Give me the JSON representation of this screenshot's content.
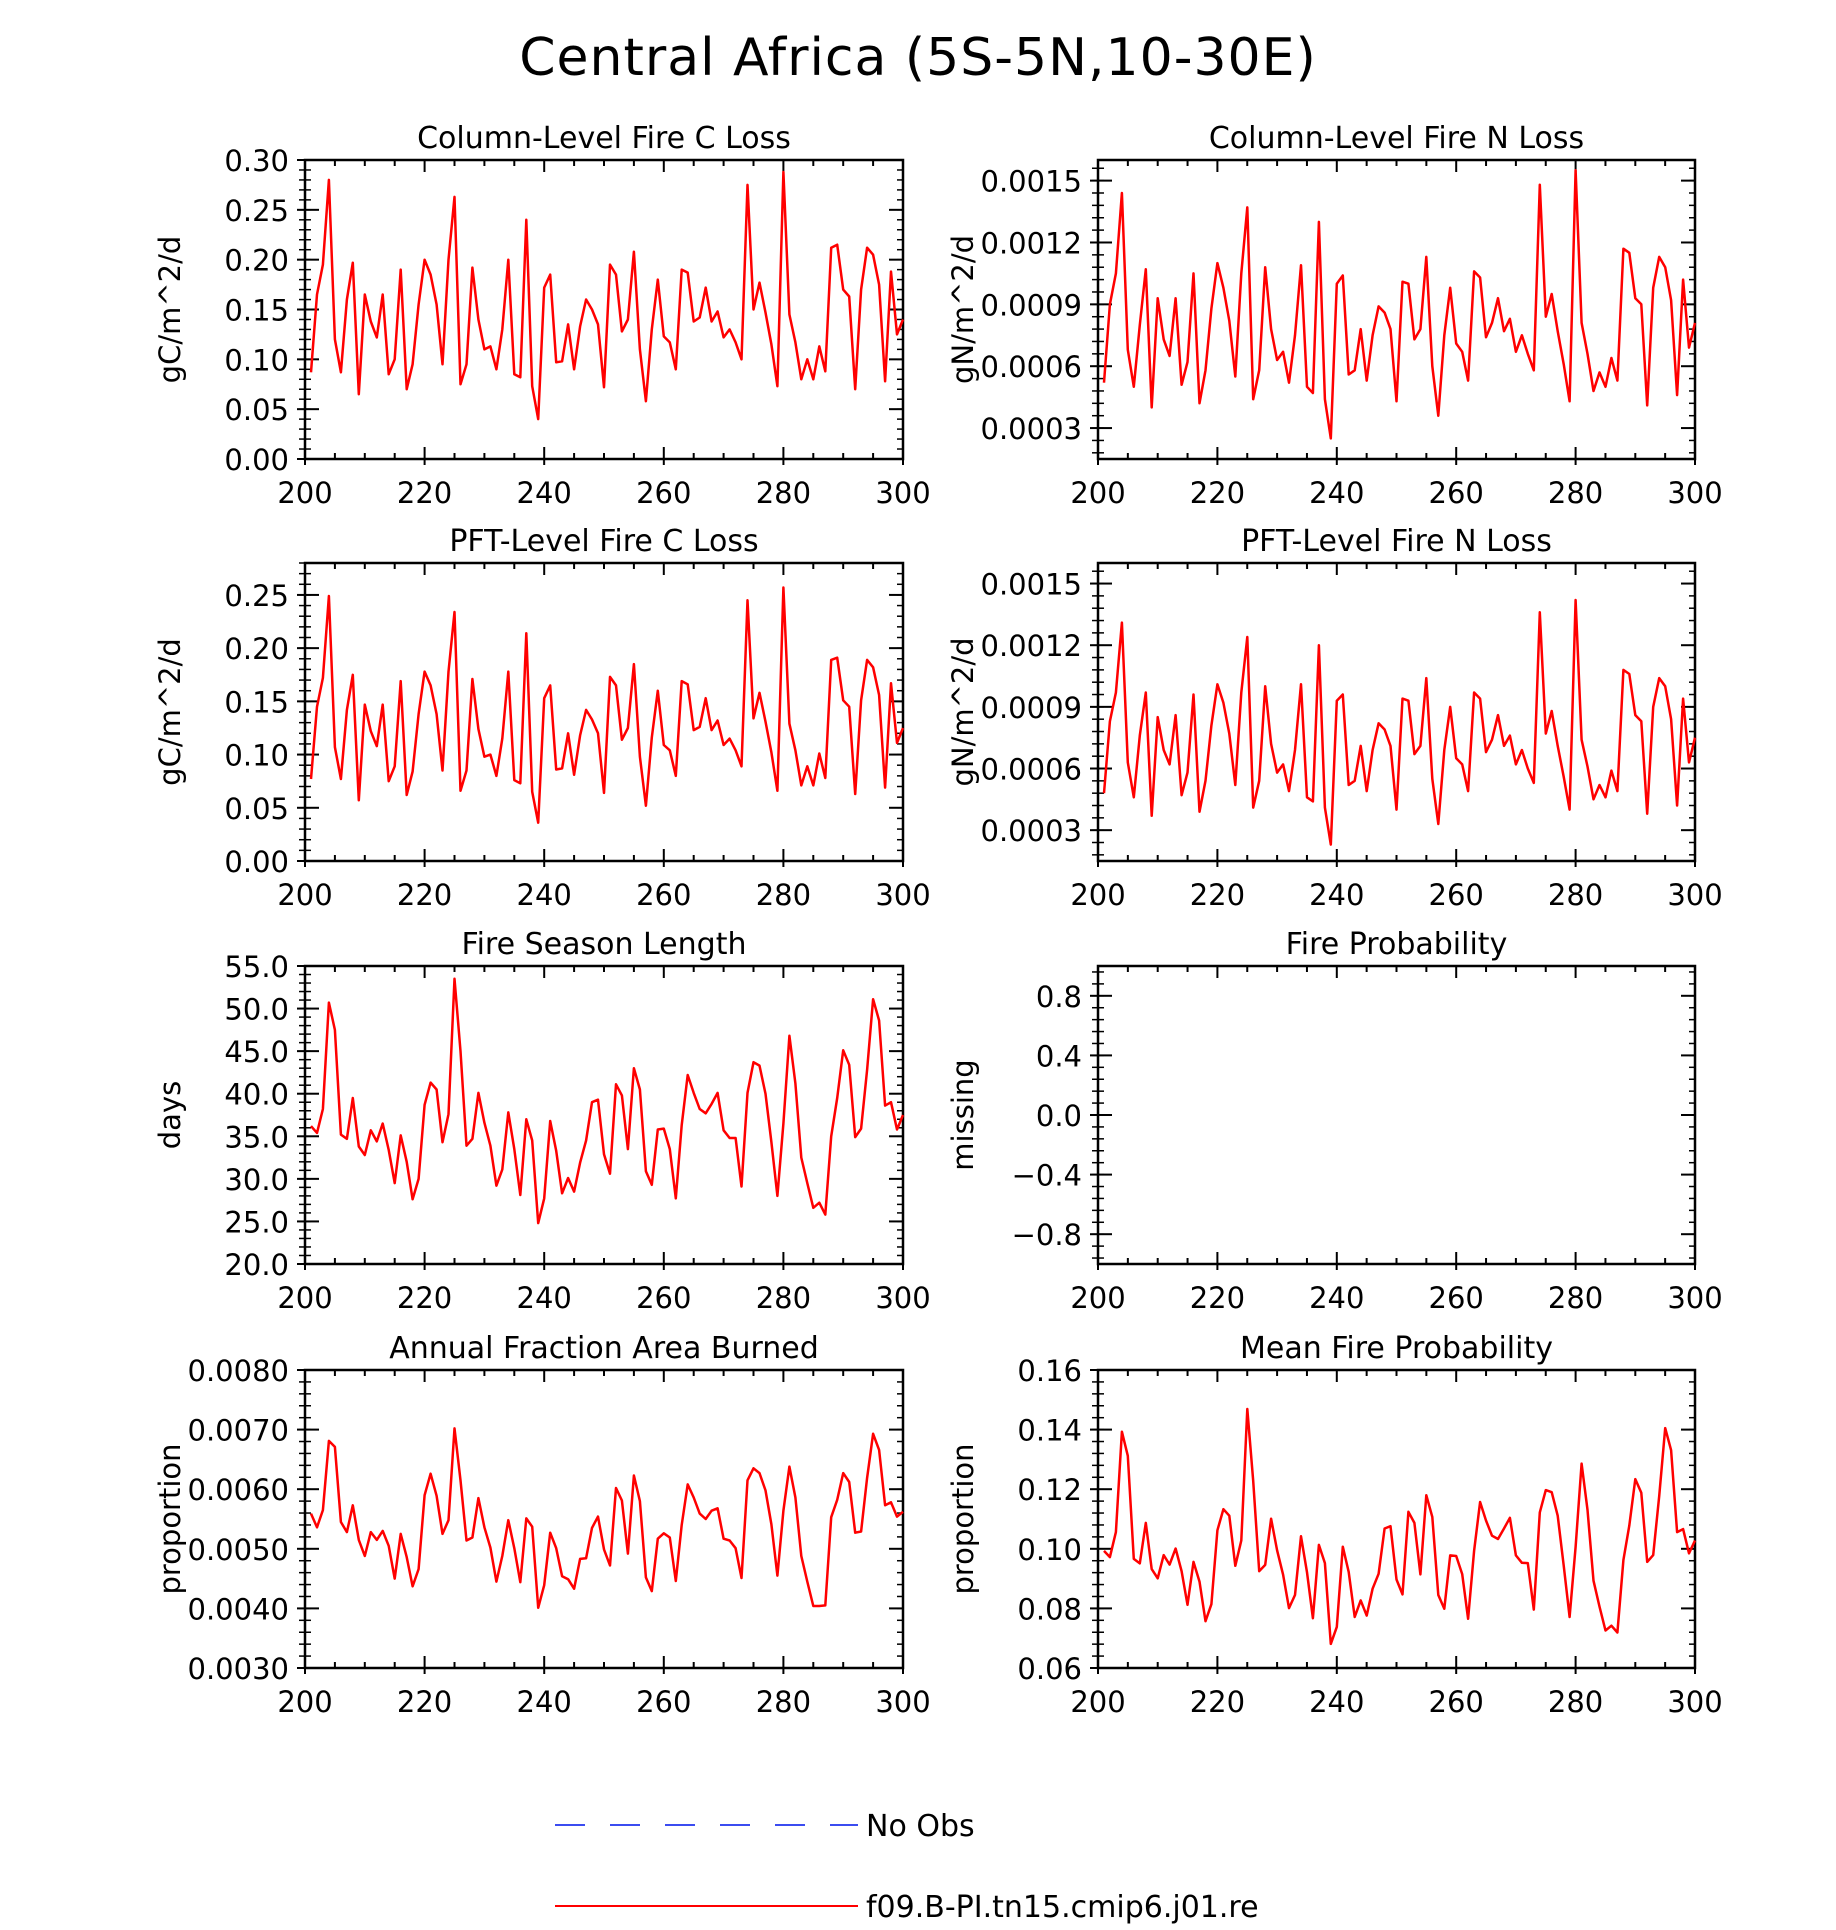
{
  "title": "Central Africa (5S-5N,10-30E)",
  "legend": {
    "obs_label": "No Obs",
    "model_label": "f09.B-PI.tn15.cmip6.j01.re",
    "obs_color": "#3b4cf0",
    "model_color": "#ff0000"
  },
  "chart_data": [
    {
      "type": "line",
      "title": "Column-Level Fire C Loss",
      "ylabel": "gC/m^2/d",
      "xlim": [
        200,
        300
      ],
      "ylim": [
        0,
        0.3
      ],
      "yticks": [
        "0.00",
        "0.05",
        "0.10",
        "0.15",
        "0.20",
        "0.25",
        "0.30"
      ],
      "yticks_values": [
        0,
        0.05,
        0.1,
        0.15,
        0.2,
        0.25,
        0.3
      ],
      "xticks": [
        200,
        220,
        240,
        260,
        280,
        300
      ],
      "x_start": 201,
      "series": [
        {
          "values": [
            0.087,
            0.165,
            0.195,
            0.28,
            0.12,
            0.087,
            0.16,
            0.197,
            0.065,
            0.165,
            0.138,
            0.122,
            0.165,
            0.085,
            0.1,
            0.19,
            0.07,
            0.095,
            0.155,
            0.2,
            0.185,
            0.155,
            0.095,
            0.2,
            0.263,
            0.075,
            0.095,
            0.192,
            0.14,
            0.11,
            0.113,
            0.09,
            0.13,
            0.2,
            0.085,
            0.082,
            0.24,
            0.073,
            0.04,
            0.172,
            0.185,
            0.097,
            0.098,
            0.135,
            0.09,
            0.133,
            0.16,
            0.15,
            0.135,
            0.072,
            0.195,
            0.185,
            0.128,
            0.14,
            0.208,
            0.11,
            0.058,
            0.13,
            0.18,
            0.123,
            0.117,
            0.09,
            0.19,
            0.187,
            0.138,
            0.142,
            0.172,
            0.138,
            0.148,
            0.122,
            0.13,
            0.117,
            0.1,
            0.275,
            0.15,
            0.177,
            0.147,
            0.115,
            0.073,
            0.288,
            0.145,
            0.117,
            0.08,
            0.1,
            0.08,
            0.113,
            0.088,
            0.212,
            0.215,
            0.17,
            0.163,
            0.07,
            0.17,
            0.212,
            0.205,
            0.175,
            0.078,
            0.188,
            0.125,
            0.14
          ]
        }
      ]
    },
    {
      "type": "line",
      "title": "Column-Level Fire N Loss",
      "ylabel": "gN/m^2/d",
      "xlim": [
        200,
        300
      ],
      "ylim": [
        0.00015,
        0.0016
      ],
      "yticks": [
        "0.0003",
        "0.0006",
        "0.0009",
        "0.0012",
        "0.0015"
      ],
      "yticks_values": [
        0.0003,
        0.0006,
        0.0009,
        0.0012,
        0.0015
      ],
      "xticks": [
        200,
        220,
        240,
        260,
        280,
        300
      ],
      "x_start": 201,
      "series": [
        {
          "values": [
            0.00052,
            0.0009,
            0.00105,
            0.00144,
            0.00068,
            0.0005,
            0.0008,
            0.00107,
            0.0004,
            0.00093,
            0.00073,
            0.00065,
            0.00093,
            0.00051,
            0.00062,
            0.00105,
            0.00042,
            0.00058,
            0.00088,
            0.0011,
            0.00098,
            0.00082,
            0.00055,
            0.00105,
            0.00137,
            0.00044,
            0.00058,
            0.00108,
            0.00078,
            0.00063,
            0.00067,
            0.00052,
            0.00075,
            0.00109,
            0.0005,
            0.00047,
            0.0013,
            0.00044,
            0.00025,
            0.001,
            0.00104,
            0.00056,
            0.00058,
            0.00078,
            0.00053,
            0.00075,
            0.00089,
            0.00086,
            0.00078,
            0.00043,
            0.00101,
            0.001,
            0.00073,
            0.00078,
            0.00113,
            0.0006,
            0.00036,
            0.00075,
            0.00098,
            0.00071,
            0.00067,
            0.00053,
            0.00106,
            0.00103,
            0.00074,
            0.00081,
            0.00093,
            0.00077,
            0.00083,
            0.00067,
            0.00075,
            0.00066,
            0.00058,
            0.00148,
            0.00084,
            0.00095,
            0.00077,
            0.00061,
            0.00043,
            0.00155,
            0.00081,
            0.00066,
            0.00048,
            0.00057,
            0.0005,
            0.00064,
            0.00053,
            0.00117,
            0.00115,
            0.00093,
            0.0009,
            0.00041,
            0.00098,
            0.00113,
            0.00108,
            0.00092,
            0.00046,
            0.00102,
            0.00069,
            0.00081
          ]
        }
      ]
    },
    {
      "type": "line",
      "title": "PFT-Level Fire C Loss",
      "ylabel": "gC/m^2/d",
      "xlim": [
        200,
        300
      ],
      "ylim": [
        0,
        0.28
      ],
      "yticks": [
        "0.00",
        "0.05",
        "0.10",
        "0.15",
        "0.20",
        "0.25"
      ],
      "yticks_values": [
        0,
        0.05,
        0.1,
        0.15,
        0.2,
        0.25
      ],
      "xticks": [
        200,
        220,
        240,
        260,
        280,
        300
      ],
      "x_start": 201,
      "series": [
        {
          "values": [
            0.077,
            0.145,
            0.172,
            0.249,
            0.107,
            0.077,
            0.142,
            0.175,
            0.057,
            0.147,
            0.122,
            0.108,
            0.147,
            0.075,
            0.089,
            0.169,
            0.062,
            0.084,
            0.138,
            0.178,
            0.165,
            0.138,
            0.085,
            0.178,
            0.234,
            0.066,
            0.085,
            0.171,
            0.124,
            0.098,
            0.1,
            0.08,
            0.115,
            0.178,
            0.076,
            0.073,
            0.214,
            0.065,
            0.036,
            0.153,
            0.165,
            0.086,
            0.087,
            0.12,
            0.081,
            0.118,
            0.142,
            0.133,
            0.12,
            0.064,
            0.173,
            0.165,
            0.114,
            0.125,
            0.185,
            0.098,
            0.052,
            0.116,
            0.16,
            0.109,
            0.104,
            0.08,
            0.169,
            0.166,
            0.123,
            0.126,
            0.153,
            0.123,
            0.132,
            0.109,
            0.115,
            0.104,
            0.089,
            0.245,
            0.134,
            0.158,
            0.131,
            0.102,
            0.066,
            0.257,
            0.129,
            0.104,
            0.071,
            0.089,
            0.071,
            0.101,
            0.078,
            0.189,
            0.191,
            0.151,
            0.145,
            0.063,
            0.151,
            0.189,
            0.182,
            0.156,
            0.069,
            0.167,
            0.111,
            0.125
          ]
        }
      ]
    },
    {
      "type": "line",
      "title": "PFT-Level Fire N Loss",
      "ylabel": "gN/m^2/d",
      "xlim": [
        200,
        300
      ],
      "ylim": [
        0.00015,
        0.0016
      ],
      "yticks": [
        "0.0003",
        "0.0006",
        "0.0009",
        "0.0012",
        "0.0015"
      ],
      "yticks_values": [
        0.0003,
        0.0006,
        0.0009,
        0.0012,
        0.0015
      ],
      "xticks": [
        200,
        220,
        240,
        260,
        280,
        300
      ],
      "x_start": 201,
      "series": [
        {
          "values": [
            0.00048,
            0.00083,
            0.00097,
            0.00131,
            0.00063,
            0.00046,
            0.00076,
            0.00097,
            0.00037,
            0.00085,
            0.00069,
            0.00062,
            0.00086,
            0.00047,
            0.00058,
            0.00096,
            0.00039,
            0.00054,
            0.00081,
            0.00101,
            0.00092,
            0.00077,
            0.00052,
            0.00097,
            0.00124,
            0.00041,
            0.00054,
            0.001,
            0.00072,
            0.00058,
            0.00062,
            0.00049,
            0.00069,
            0.00101,
            0.00046,
            0.00044,
            0.0012,
            0.00041,
            0.00023,
            0.00093,
            0.00096,
            0.00052,
            0.00054,
            0.00071,
            0.00049,
            0.00069,
            0.00082,
            0.00079,
            0.00071,
            0.0004,
            0.00094,
            0.00093,
            0.00067,
            0.00071,
            0.00104,
            0.00055,
            0.00033,
            0.00069,
            0.0009,
            0.00065,
            0.00062,
            0.00049,
            0.00097,
            0.00094,
            0.00068,
            0.00074,
            0.00086,
            0.00071,
            0.00076,
            0.00062,
            0.00069,
            0.0006,
            0.00053,
            0.00136,
            0.00077,
            0.00088,
            0.00071,
            0.00056,
            0.0004,
            0.00142,
            0.00074,
            0.00061,
            0.00045,
            0.00052,
            0.00046,
            0.00059,
            0.00049,
            0.00108,
            0.00106,
            0.00086,
            0.00083,
            0.00038,
            0.0009,
            0.00104,
            0.001,
            0.00084,
            0.00042,
            0.00094,
            0.00063,
            0.00075
          ]
        }
      ]
    },
    {
      "type": "line",
      "title": "Fire Season Length",
      "ylabel": "days",
      "xlim": [
        200,
        300
      ],
      "ylim": [
        20,
        55
      ],
      "yticks": [
        "20.0",
        "25.0",
        "30.0",
        "35.0",
        "40.0",
        "45.0",
        "50.0",
        "55.0"
      ],
      "yticks_values": [
        20,
        25,
        30,
        35,
        40,
        45,
        50,
        55
      ],
      "xticks": [
        200,
        220,
        240,
        260,
        280,
        300
      ],
      "x_start": 201,
      "series": [
        {
          "values": [
            36.2,
            35.4,
            38.2,
            50.7,
            47.5,
            35.2,
            34.7,
            39.5,
            33.8,
            32.8,
            35.7,
            34.4,
            36.5,
            33.4,
            29.5,
            35.1,
            32.0,
            27.6,
            30.0,
            38.7,
            41.3,
            40.5,
            34.3,
            37.6,
            53.5,
            45.0,
            33.9,
            34.7,
            40.1,
            36.6,
            33.9,
            29.2,
            31.1,
            37.8,
            33.5,
            28.1,
            37.0,
            34.5,
            24.8,
            27.7,
            36.8,
            33.3,
            28.3,
            30.1,
            28.5,
            31.9,
            34.5,
            39.0,
            39.3,
            32.9,
            30.6,
            41.1,
            39.8,
            33.5,
            43.0,
            40.5,
            30.9,
            29.3,
            35.8,
            35.9,
            33.5,
            27.7,
            36.3,
            42.2,
            40.1,
            38.2,
            37.7,
            38.8,
            40.1,
            35.7,
            34.8,
            34.8,
            29.1,
            40.1,
            43.7,
            43.3,
            40.0,
            34.3,
            28.0,
            36.5,
            46.8,
            41.2,
            32.5,
            29.5,
            26.6,
            27.2,
            25.8,
            35.0,
            39.5,
            45.1,
            43.4,
            34.9,
            35.9,
            42.8,
            51.1,
            48.6,
            38.6,
            39.0,
            35.8,
            37.5
          ]
        }
      ]
    },
    {
      "type": "line",
      "title": "Fire Probability",
      "ylabel": "missing",
      "xlim": [
        200,
        300
      ],
      "ylim": [
        -1,
        1
      ],
      "yticks": [
        "−0.8",
        "−0.4",
        "0.0",
        "0.4",
        "0.8"
      ],
      "yticks_values": [
        -0.8,
        -0.4,
        0,
        0.4,
        0.8
      ],
      "xticks": [
        200,
        220,
        240,
        260,
        280,
        300
      ],
      "x_start": 201,
      "series": []
    },
    {
      "type": "line",
      "title": "Annual Fraction Area Burned",
      "ylabel": "proportion",
      "xlim": [
        200,
        300
      ],
      "ylim": [
        0.003,
        0.008
      ],
      "yticks": [
        "0.0030",
        "0.0040",
        "0.0050",
        "0.0060",
        "0.0070",
        "0.0080"
      ],
      "yticks_values": [
        0.003,
        0.004,
        0.005,
        0.006,
        0.007,
        0.008
      ],
      "xticks": [
        200,
        220,
        240,
        260,
        280,
        300
      ],
      "x_start": 201,
      "series": [
        {
          "values": [
            0.00559,
            0.00536,
            0.00565,
            0.00681,
            0.00671,
            0.00545,
            0.00528,
            0.00573,
            0.00515,
            0.00488,
            0.00528,
            0.00515,
            0.0053,
            0.00505,
            0.0045,
            0.00525,
            0.00486,
            0.00437,
            0.00466,
            0.0059,
            0.00626,
            0.00589,
            0.00525,
            0.00548,
            0.00702,
            0.00615,
            0.00514,
            0.00519,
            0.00585,
            0.00536,
            0.00502,
            0.00445,
            0.00488,
            0.00548,
            0.00501,
            0.00444,
            0.00551,
            0.00537,
            0.00401,
            0.00439,
            0.00527,
            0.00501,
            0.00454,
            0.00449,
            0.00433,
            0.00483,
            0.00484,
            0.00535,
            0.00554,
            0.00499,
            0.00472,
            0.00602,
            0.00581,
            0.00492,
            0.00623,
            0.0058,
            0.00452,
            0.00429,
            0.00517,
            0.00526,
            0.00519,
            0.00446,
            0.0054,
            0.00608,
            0.00586,
            0.00559,
            0.0055,
            0.00564,
            0.00568,
            0.00517,
            0.00514,
            0.00501,
            0.00451,
            0.00615,
            0.00635,
            0.00627,
            0.00598,
            0.00541,
            0.00455,
            0.00564,
            0.00638,
            0.00586,
            0.00488,
            0.00445,
            0.00404,
            0.00404,
            0.00405,
            0.00553,
            0.00582,
            0.00627,
            0.00612,
            0.00527,
            0.00529,
            0.00619,
            0.00693,
            0.00666,
            0.00573,
            0.00578,
            0.00554,
            0.00562
          ]
        }
      ]
    },
    {
      "type": "line",
      "title": "Mean Fire Probability",
      "ylabel": "proportion",
      "xlim": [
        200,
        300
      ],
      "ylim": [
        0.06,
        0.16
      ],
      "yticks": [
        "0.06",
        "0.08",
        "0.10",
        "0.12",
        "0.14",
        "0.16"
      ],
      "yticks_values": [
        0.06,
        0.08,
        0.1,
        0.12,
        0.14,
        0.16
      ],
      "xticks": [
        200,
        220,
        240,
        260,
        280,
        300
      ],
      "x_start": 201,
      "series": [
        {
          "values": [
            0.0993,
            0.0972,
            0.1056,
            0.1393,
            0.1312,
            0.0966,
            0.0951,
            0.1087,
            0.0932,
            0.0901,
            0.0979,
            0.0947,
            0.1001,
            0.0925,
            0.0812,
            0.0956,
            0.089,
            0.0757,
            0.0814,
            0.1062,
            0.1133,
            0.1111,
            0.0943,
            0.1028,
            0.1469,
            0.1228,
            0.0925,
            0.0946,
            0.1101,
            0.0995,
            0.0913,
            0.0801,
            0.0845,
            0.1042,
            0.0921,
            0.0767,
            0.1013,
            0.0952,
            0.0681,
            0.0738,
            0.1007,
            0.0922,
            0.0771,
            0.0827,
            0.0776,
            0.0866,
            0.0916,
            0.1068,
            0.1076,
            0.0897,
            0.0847,
            0.1124,
            0.1087,
            0.0914,
            0.118,
            0.1107,
            0.0845,
            0.0799,
            0.0978,
            0.0976,
            0.0915,
            0.0765,
            0.0993,
            0.1157,
            0.1095,
            0.1044,
            0.1033,
            0.1068,
            0.1104,
            0.0978,
            0.0953,
            0.0952,
            0.0796,
            0.1122,
            0.1197,
            0.119,
            0.1111,
            0.0944,
            0.0771,
            0.1006,
            0.1286,
            0.1131,
            0.0893,
            0.0806,
            0.0726,
            0.0742,
            0.0719,
            0.0962,
            0.1078,
            0.1234,
            0.1188,
            0.0956,
            0.0979,
            0.1177,
            0.1405,
            0.1331,
            0.1056,
            0.1066,
            0.0985,
            0.1028
          ]
        }
      ]
    }
  ]
}
